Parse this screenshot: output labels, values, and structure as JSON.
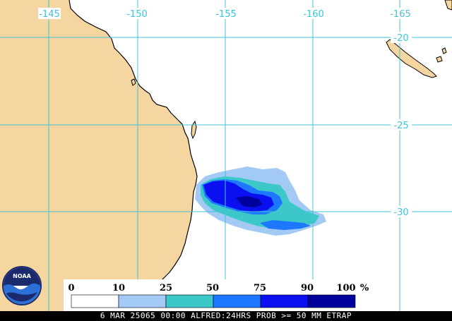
{
  "map": {
    "longitude_labels": [
      "-145",
      "-150",
      "-155",
      "-160",
      "-165"
    ],
    "latitude_labels": [
      "-20",
      "-25",
      "-30"
    ],
    "land_color": "#f5d5a0",
    "ocean_color": "#ffffff",
    "grid_color": "#3fc4d6"
  },
  "legend": {
    "thresholds": [
      "0",
      "10",
      "25",
      "50",
      "75",
      "90",
      "100"
    ],
    "unit": "%",
    "colors": [
      "#ffffff",
      "#a3c9f5",
      "#3cc8c8",
      "#1e78ff",
      "#0a10f0",
      "#00009c"
    ]
  },
  "logo": {
    "text": "NOAA"
  },
  "footer": {
    "caption": "6 MAR 25065 00:00 ALFRED:24HRS PROB >= 50 MM ETRAP"
  }
}
